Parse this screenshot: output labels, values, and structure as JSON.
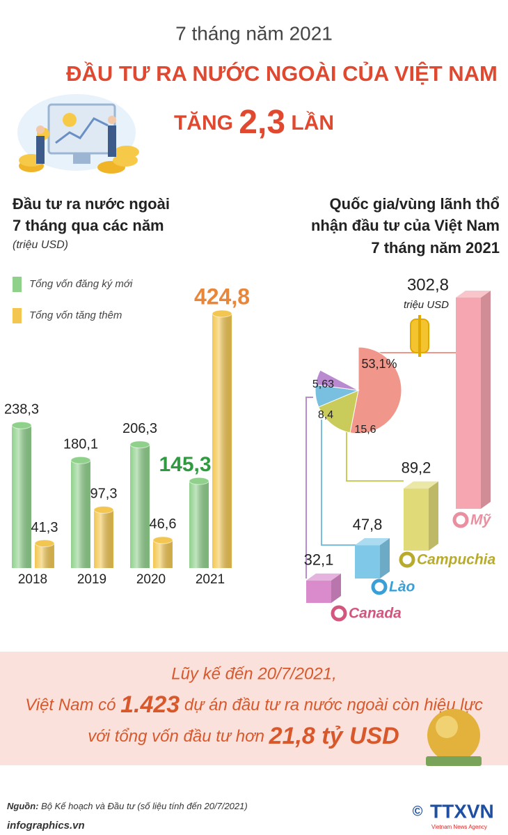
{
  "header": {
    "subtitle": "7 tháng năm 2021",
    "title": "ĐẦU TƯ RA NƯỚC NGOÀI CỦA VIỆT NAM",
    "title2_parts": [
      "TĂNG ",
      "2,3",
      " LẦN"
    ]
  },
  "chart_data": [
    {
      "type": "bar",
      "title_lines": [
        "Đầu tư ra nước ngoài",
        "7 tháng qua các năm"
      ],
      "subtitle": "(triệu USD)",
      "categories": [
        "2018",
        "2019",
        "2020",
        "2021"
      ],
      "series": [
        {
          "name": "Tổng vốn đăng ký mới",
          "color": "#8fd18b",
          "values": [
            238.3,
            180.1,
            206.3,
            145.3
          ],
          "value_labels": [
            "238,3",
            "180,1",
            "206,3",
            "145,3"
          ]
        },
        {
          "name": "Tổng vốn tăng thêm",
          "color": "#f2c650",
          "values": [
            41.3,
            97.3,
            46.6,
            424.8
          ],
          "value_labels": [
            "41,3",
            "97,3",
            "46,6",
            "424,8"
          ]
        }
      ]
    },
    {
      "type": "bar3d",
      "title_lines": [
        "Quốc gia/vùng lãnh thổ",
        "nhận đầu tư của Việt Nam",
        "7 tháng năm 2021"
      ],
      "unit": "triệu USD",
      "categories": [
        "Canada",
        "Lào",
        "Campuchia",
        "Mỹ"
      ],
      "values": [
        32.1,
        47.8,
        89.2,
        302.8
      ],
      "value_labels": [
        "32,1",
        "47,8",
        "89,2",
        "302,8"
      ],
      "colors": [
        "#d98bcc",
        "#7fc8e8",
        "#e0da78",
        "#f5a6b0"
      ],
      "label_colors": [
        "#d2567e",
        "#3a9fd6",
        "#b8ab2c",
        "#e98fa0"
      ]
    },
    {
      "type": "pie",
      "values": [
        53.1,
        15.6,
        8.4,
        5.63
      ],
      "value_labels": [
        "53,1%",
        "15,6",
        "8,4",
        "5,63"
      ],
      "colors": [
        "#f0968a",
        "#c9cc5a",
        "#79c0e0",
        "#b98ad0"
      ]
    }
  ],
  "summary": {
    "line1": "Lũy kế đến 20/7/2021,",
    "line2_parts": [
      "Việt Nam có ",
      "1.423",
      " dự án đầu tư ra nước ngoài còn hiệu lực"
    ],
    "line3_parts": [
      "với tổng vốn đầu tư hơn ",
      "21,8 tỷ USD"
    ]
  },
  "footer": {
    "source_label": "Nguồn:",
    "source": " Bộ Kế hoạch và Đầu tư (số liệu tính đến 20/7/2021)",
    "site": "infographics.vn",
    "copyright": "©",
    "logo": "TTXVN",
    "logo_sub": "Vietnam News Agency"
  }
}
